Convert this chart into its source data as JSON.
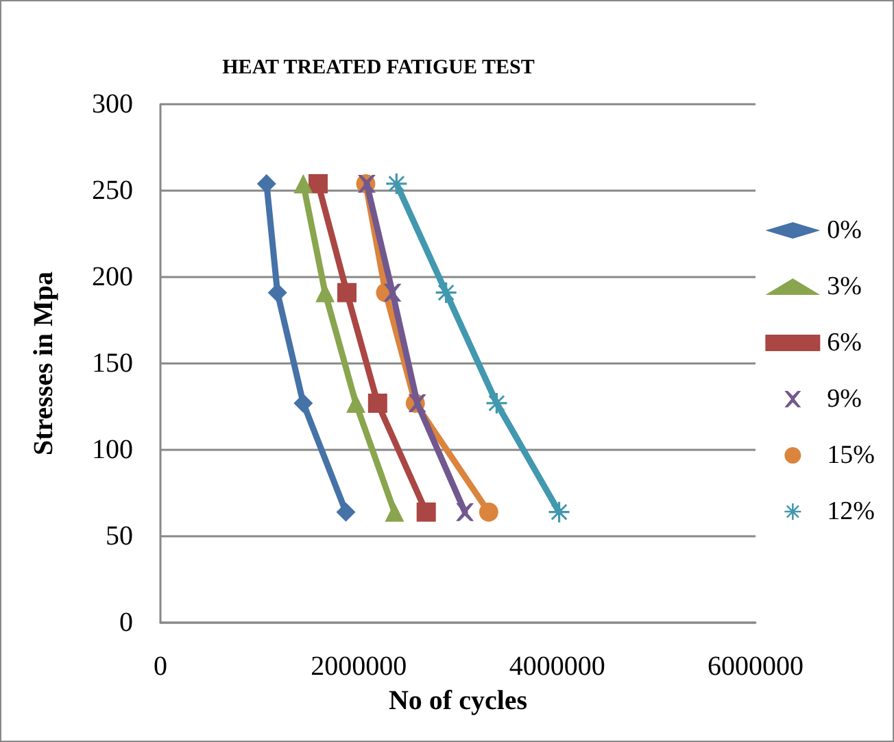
{
  "chart_data": {
    "type": "line",
    "title": "HEAT TREATED FATIGUE TEST",
    "xlabel": "No of cycles",
    "ylabel": "Stresses in Mpa",
    "xlim": [
      0,
      6000000
    ],
    "xticks": [
      0,
      2000000,
      4000000,
      6000000
    ],
    "ylim": [
      0,
      300
    ],
    "yticks": [
      0,
      50,
      100,
      150,
      200,
      250,
      300
    ],
    "grid": "y",
    "legend": "right",
    "series": [
      {
        "name": "0%",
        "color": "#4572a7",
        "marker": "diamond",
        "x": [
          1070000,
          1180000,
          1440000,
          1870000
        ],
        "values": [
          254,
          191,
          127,
          64
        ]
      },
      {
        "name": "3%",
        "color": "#89a54e",
        "marker": "triangle",
        "x": [
          1440000,
          1660000,
          1970000,
          2360000
        ],
        "values": [
          254,
          191,
          127,
          64
        ]
      },
      {
        "name": "6%",
        "color": "#aa4643",
        "marker": "square",
        "x": [
          1590000,
          1880000,
          2190000,
          2680000
        ],
        "values": [
          254,
          191,
          127,
          64
        ]
      },
      {
        "name": "9%",
        "color": "#71588f",
        "marker": "cross",
        "x": [
          2080000,
          2340000,
          2590000,
          3070000
        ],
        "values": [
          254,
          191,
          127,
          64
        ]
      },
      {
        "name": "15%",
        "color": "#db843d",
        "marker": "circle",
        "x": [
          2070000,
          2270000,
          2570000,
          3310000
        ],
        "values": [
          254,
          191,
          127,
          64
        ]
      },
      {
        "name": "12%",
        "color": "#4198af",
        "marker": "star",
        "x": [
          2380000,
          2880000,
          3390000,
          4020000
        ],
        "values": [
          254,
          191,
          127,
          64
        ]
      }
    ]
  }
}
